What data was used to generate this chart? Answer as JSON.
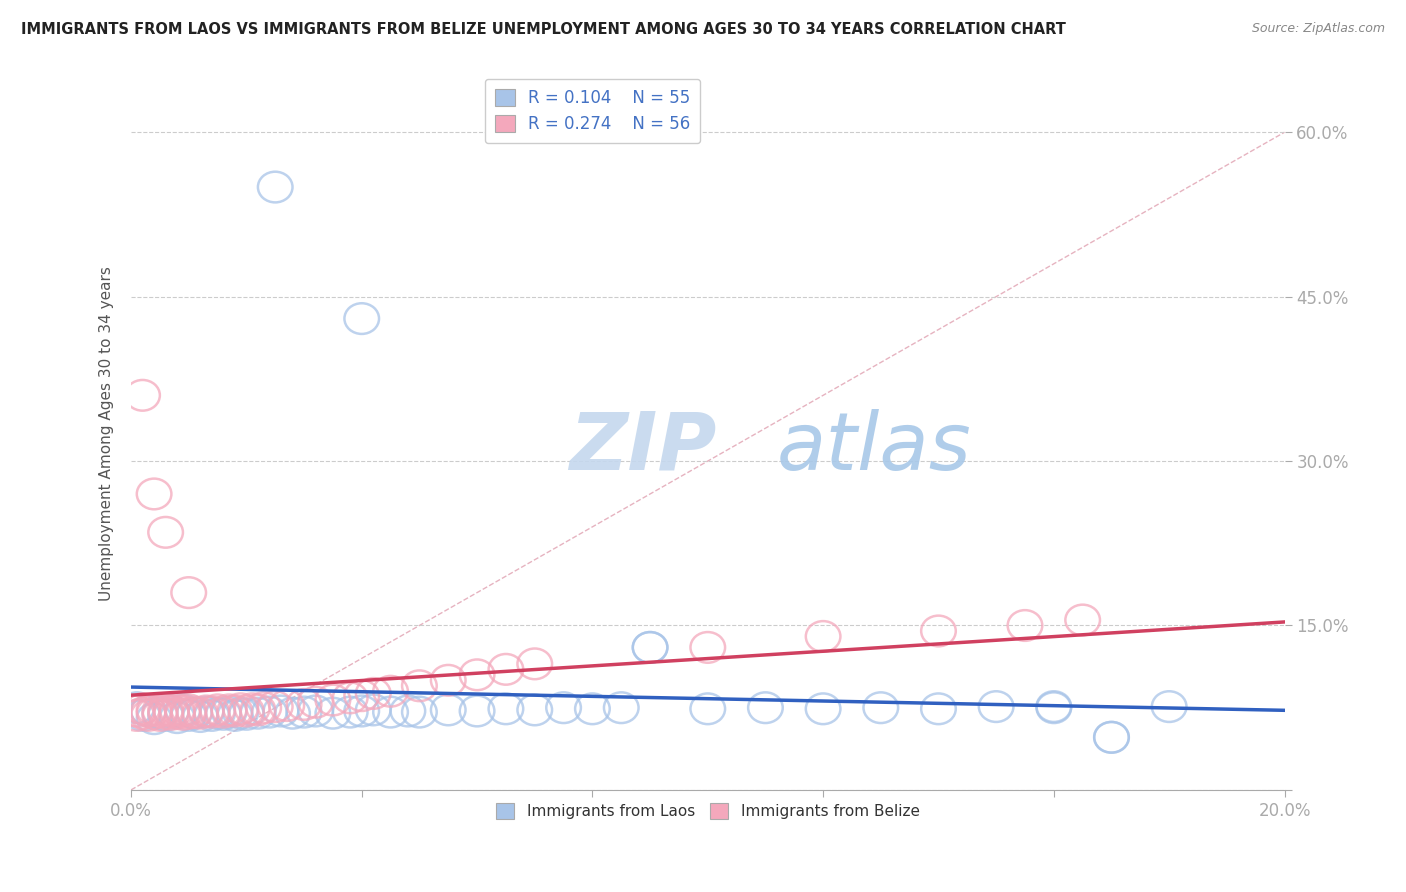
{
  "title": "IMMIGRANTS FROM LAOS VS IMMIGRANTS FROM BELIZE UNEMPLOYMENT AMONG AGES 30 TO 34 YEARS CORRELATION CHART",
  "source": "Source: ZipAtlas.com",
  "ylabel": "Unemployment Among Ages 30 to 34 years",
  "xlim": [
    0.0,
    0.2
  ],
  "ylim": [
    0.0,
    0.65
  ],
  "yticks": [
    0.0,
    0.15,
    0.3,
    0.45,
    0.6
  ],
  "yticklabels": [
    "",
    "15.0%",
    "30.0%",
    "45.0%",
    "60.0%"
  ],
  "laos_R": 0.104,
  "laos_N": 55,
  "belize_R": 0.274,
  "belize_N": 56,
  "laos_color": "#a8c4e8",
  "belize_color": "#f4a8bc",
  "laos_line_color": "#3060c0",
  "belize_line_color": "#d04060",
  "ref_line_color": "#e0a0b0",
  "watermark_zip": "ZIP",
  "watermark_atlas": "atlas",
  "background_color": "#ffffff"
}
